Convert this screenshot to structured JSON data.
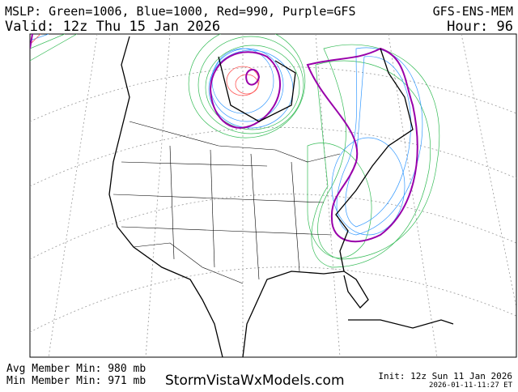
{
  "header": {
    "title_left": "MSLP: Green=1006, Blue=1000, Red=990, Purple=GFS",
    "title_right": "GFS-ENS-MEM",
    "valid": "Valid: 12z Thu 15 Jan 2026",
    "hour": "Hour: 96"
  },
  "footer": {
    "avg_min": "Avg Member Min: 980 mb",
    "min_min": "Min Member Min: 971 mb",
    "site": "StormVistaWxModels.com",
    "init": "Init: 12z Sun 11 Jan 2026",
    "timestamp": "2026-01-11-11:27 ET"
  }
}
